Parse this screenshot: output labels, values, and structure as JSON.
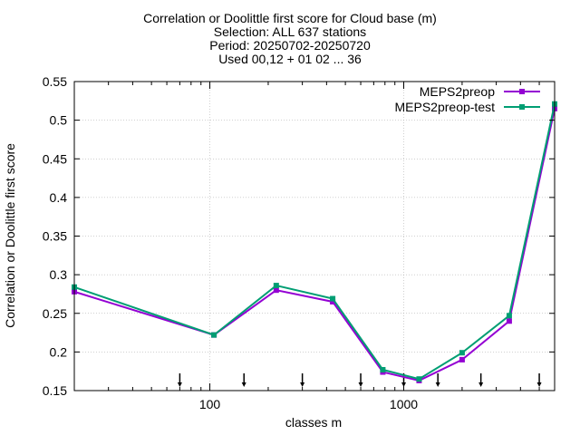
{
  "chart_data": {
    "type": "line",
    "title_lines": [
      "Correlation or Doolittle first score  for Cloud base (m)",
      "Selection: ALL    637 stations",
      "Period: 20250702-20250720",
      "Used 00,12 + 01 02 ... 36"
    ],
    "xlabel": "classes m",
    "ylabel": "Correlation or Doolittle first score",
    "x_scale": "log",
    "xlim": [
      20,
      6000
    ],
    "ylim": [
      0.15,
      0.55
    ],
    "x_ticks": [
      100,
      1000
    ],
    "x_tick_labels": [
      "100",
      "1000"
    ],
    "y_ticks": [
      0.15,
      0.2,
      0.25,
      0.3,
      0.35,
      0.4,
      0.45,
      0.5,
      0.55
    ],
    "y_tick_labels": [
      "0.15",
      "0.2",
      "0.25",
      "0.3",
      "0.35",
      "0.4",
      "0.45",
      "0.5",
      "0.55"
    ],
    "grid": true,
    "legend_position": "top-right",
    "x": [
      20,
      105,
      220,
      430,
      780,
      1200,
      2000,
      3500,
      6000
    ],
    "series": [
      {
        "name": "MEPS2preop",
        "color": "#9400d3",
        "values": [
          0.278,
          0.222,
          0.28,
          0.265,
          0.174,
          0.163,
          0.19,
          0.24,
          0.515
        ]
      },
      {
        "name": "MEPS2preop-test",
        "color": "#009e73",
        "values": [
          0.284,
          0.222,
          0.286,
          0.269,
          0.177,
          0.165,
          0.199,
          0.247,
          0.521
        ]
      }
    ],
    "arrow_markers_x": [
      70,
      150,
      300,
      600,
      1000,
      1500,
      2500,
      5000
    ]
  }
}
